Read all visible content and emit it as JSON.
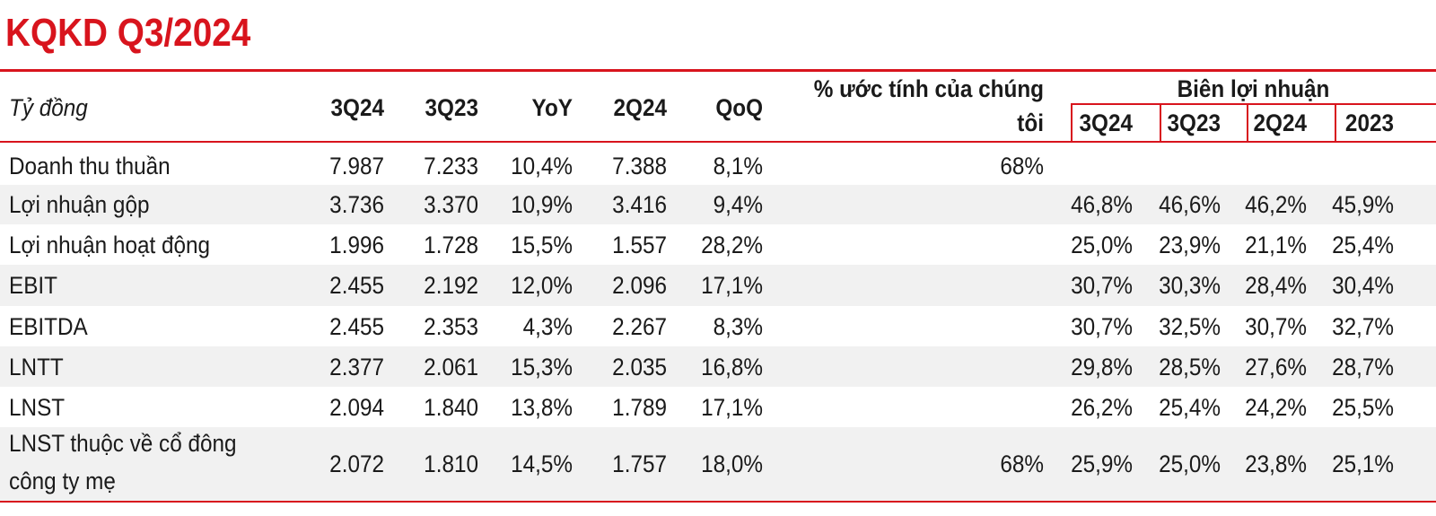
{
  "title": "KQKD Q3/2024",
  "header": {
    "unit_label": "Tỷ đồng",
    "columns": [
      "3Q24",
      "3Q23",
      "YoY",
      "2Q24",
      "QoQ"
    ],
    "estimate_label_line1": "% ước tính của chúng",
    "estimate_label_line2": "tôi",
    "margin_group_label": "Biên lợi nhuận",
    "margin_columns": [
      "3Q24",
      "3Q23",
      "2Q24",
      "2023"
    ]
  },
  "rows": [
    {
      "label": "Doanh thu thuần",
      "label2": "",
      "values": [
        "7.987",
        "7.233",
        "10,4%",
        "7.388",
        "8,1%"
      ],
      "estimate": "68%",
      "margins": [
        "",
        "",
        "",
        ""
      ]
    },
    {
      "label": "Lợi nhuận gộp",
      "label2": "",
      "values": [
        "3.736",
        "3.370",
        "10,9%",
        "3.416",
        "9,4%"
      ],
      "estimate": "",
      "margins": [
        "46,8%",
        "46,6%",
        "46,2%",
        "45,9%"
      ]
    },
    {
      "label": "Lợi nhuận hoạt động",
      "label2": "",
      "values": [
        "1.996",
        "1.728",
        "15,5%",
        "1.557",
        "28,2%"
      ],
      "estimate": "",
      "margins": [
        "25,0%",
        "23,9%",
        "21,1%",
        "25,4%"
      ]
    },
    {
      "label": "EBIT",
      "label2": "",
      "values": [
        "2.455",
        "2.192",
        "12,0%",
        "2.096",
        "17,1%"
      ],
      "estimate": "",
      "margins": [
        "30,7%",
        "30,3%",
        "28,4%",
        "30,4%"
      ]
    },
    {
      "label": "EBITDA",
      "label2": "",
      "values": [
        "2.455",
        "2.353",
        "4,3%",
        "2.267",
        "8,3%"
      ],
      "estimate": "",
      "margins": [
        "30,7%",
        "32,5%",
        "30,7%",
        "32,7%"
      ]
    },
    {
      "label": "LNTT",
      "label2": "",
      "values": [
        "2.377",
        "2.061",
        "15,3%",
        "2.035",
        "16,8%"
      ],
      "estimate": "",
      "margins": [
        "29,8%",
        "28,5%",
        "27,6%",
        "28,7%"
      ]
    },
    {
      "label": "LNST",
      "label2": "",
      "values": [
        "2.094",
        "1.840",
        "13,8%",
        "1.789",
        "17,1%"
      ],
      "estimate": "",
      "margins": [
        "26,2%",
        "25,4%",
        "24,2%",
        "25,5%"
      ]
    },
    {
      "label": "LNST thuộc về cổ đông",
      "label2": "công ty mẹ",
      "values": [
        "2.072",
        "1.810",
        "14,5%",
        "1.757",
        "18,0%"
      ],
      "estimate": "68%",
      "margins": [
        "25,9%",
        "25,0%",
        "23,8%",
        "25,1%"
      ]
    }
  ]
}
